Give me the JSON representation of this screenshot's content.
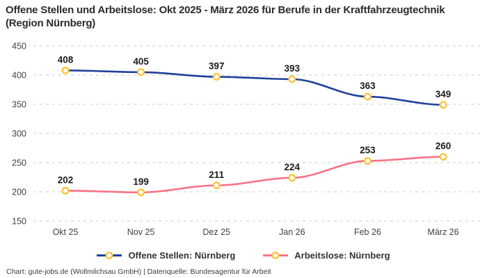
{
  "title": "Offene Stellen und Arbeitslose: Okt 2025 - März 2026 für Berufe in der Kraftfahrzeugtechnik (Region Nürnberg)",
  "footer": "Chart: gute-jobs.de (Wollmilchsau GmbH) | Datenquelle: Bundesagentur für Arbeit",
  "colors": {
    "background": "#ffffff",
    "grid": "#cccccc",
    "title_text": "#2b2b2b",
    "tick_text": "#404040",
    "data_label_text": "#1b1b1b",
    "legend_text": "#333333"
  },
  "chart_data": {
    "type": "line",
    "title": "Offene Stellen und Arbeitslose: Okt 2025 - März 2026 für Berufe in der Kraftfahrzeugtechnik (Region Nürnberg)",
    "categories": [
      "Okt 25",
      "Nov 25",
      "Dez 25",
      "Jan 26",
      "Feb 26",
      "März 26"
    ],
    "series": [
      {
        "name": "Offene Stellen: Nürnberg",
        "color": "#21409a",
        "values": [
          408,
          405,
          397,
          393,
          363,
          349
        ]
      },
      {
        "name": "Arbeitslose: Nürnberg",
        "color": "#f97286",
        "values": [
          202,
          199,
          211,
          224,
          253,
          260
        ]
      }
    ],
    "ylim": [
      150,
      450
    ],
    "yticks": [
      450,
      400,
      350,
      300,
      250,
      200,
      150
    ],
    "xlabel": "",
    "ylabel": "",
    "grid": "horizontal-dashed",
    "legend_position": "bottom",
    "data_labels": "above-points",
    "marker": {
      "shape": "circle",
      "stroke": "#fdc43f",
      "fill": "#ffffff"
    }
  }
}
